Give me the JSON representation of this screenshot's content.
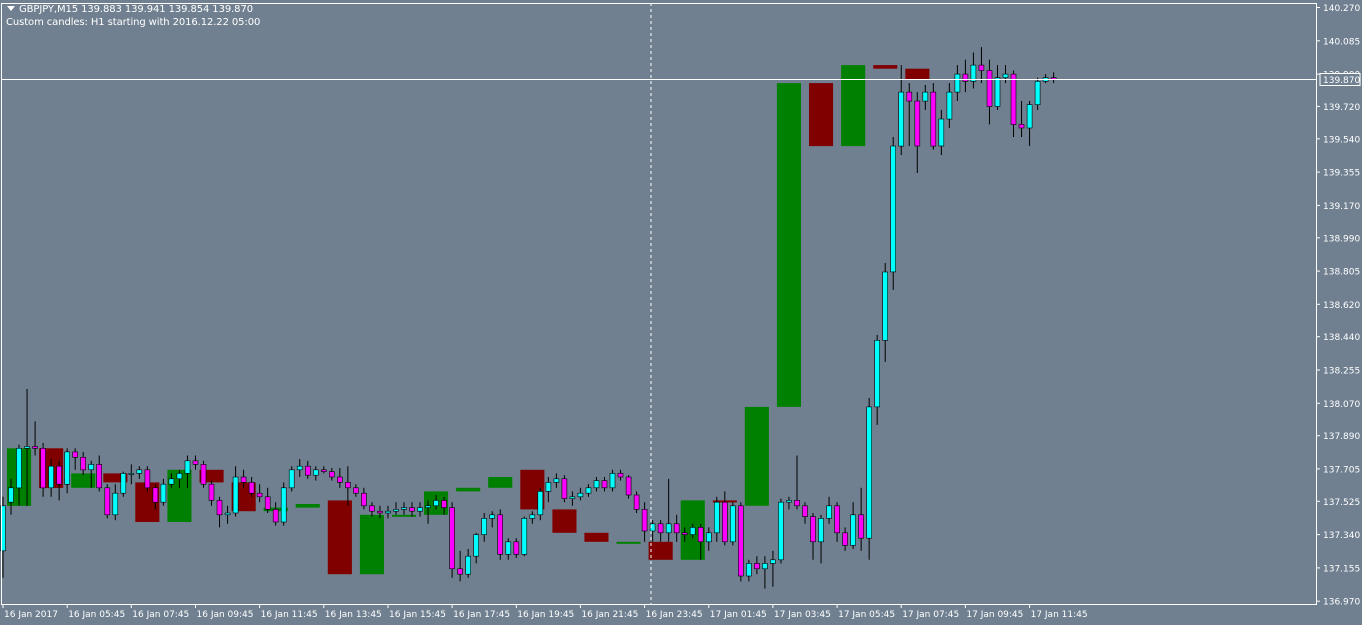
{
  "header": {
    "symbol_line": "GBPJPY,M15  139.883 139.941 139.854 139.870",
    "custom_line": "Custom candles: H1 starting with 2016.12.22 05:00"
  },
  "chart_data": {
    "type": "candlestick",
    "symbol": "GBPJPY",
    "timeframe": "M15",
    "overlay": "H1 custom candles",
    "current_price": 139.87,
    "current_price_label": "139.870",
    "ylim": [
      136.89,
      140.33
    ],
    "y_ticks": [
      140.27,
      140.085,
      139.9,
      139.72,
      139.54,
      139.355,
      139.17,
      138.99,
      138.805,
      138.62,
      138.44,
      138.255,
      138.07,
      137.89,
      137.705,
      137.525,
      137.34,
      137.155,
      136.97
    ],
    "y_tick_labels": [
      "140.270",
      "140.085",
      "139.900",
      "139.720",
      "139.540",
      "139.355",
      "139.170",
      "138.990",
      "138.805",
      "138.620",
      "138.440",
      "138.255",
      "138.070",
      "137.890",
      "137.705",
      "137.525",
      "137.340",
      "137.155",
      "136.970"
    ],
    "x_tick_labels": [
      "16 Jan 2017",
      "16 Jan 05:45",
      "16 Jan 07:45",
      "16 Jan 09:45",
      "16 Jan 11:45",
      "16 Jan 13:45",
      "16 Jan 15:45",
      "16 Jan 17:45",
      "16 Jan 19:45",
      "16 Jan 21:45",
      "16 Jan 23:45",
      "17 Jan 01:45",
      "17 Jan 03:45",
      "17 Jan 05:45",
      "17 Jan 07:45",
      "17 Jan 09:45",
      "17 Jan 11:45"
    ],
    "crosshair_x_label": "16 Jan 23:45",
    "m15_candles": [
      [
        137.25,
        137.5,
        137.1,
        137.55
      ],
      [
        137.52,
        137.6,
        137.45,
        137.65
      ],
      [
        137.6,
        137.82,
        137.5,
        137.84
      ],
      [
        137.82,
        137.83,
        137.5,
        138.15
      ],
      [
        137.83,
        137.82,
        137.78,
        137.97
      ],
      [
        137.82,
        137.6,
        137.55,
        137.85
      ],
      [
        137.6,
        137.72,
        137.55,
        137.76
      ],
      [
        137.72,
        137.62,
        137.53,
        137.75
      ],
      [
        137.62,
        137.8,
        137.57,
        137.82
      ],
      [
        137.8,
        137.77,
        137.7,
        137.82
      ],
      [
        137.77,
        137.7,
        137.67,
        137.8
      ],
      [
        137.7,
        137.73,
        137.6,
        137.75
      ],
      [
        137.73,
        137.6,
        137.58,
        137.78
      ],
      [
        137.6,
        137.45,
        137.43,
        137.62
      ],
      [
        137.45,
        137.57,
        137.42,
        137.62
      ],
      [
        137.57,
        137.68,
        137.55,
        137.69
      ],
      [
        137.68,
        137.68,
        137.62,
        137.73
      ],
      [
        137.68,
        137.7,
        137.65,
        137.72
      ],
      [
        137.7,
        137.6,
        137.58,
        137.72
      ],
      [
        137.6,
        137.52,
        137.48,
        137.62
      ],
      [
        137.52,
        137.62,
        137.5,
        137.65
      ],
      [
        137.62,
        137.65,
        137.6,
        137.68
      ],
      [
        137.65,
        137.68,
        137.6,
        137.7
      ],
      [
        137.68,
        137.75,
        137.6,
        137.78
      ],
      [
        137.75,
        137.73,
        137.7,
        137.78
      ],
      [
        137.73,
        137.62,
        137.6,
        137.75
      ],
      [
        137.62,
        137.53,
        137.5,
        137.64
      ],
      [
        137.53,
        137.45,
        137.38,
        137.55
      ],
      [
        137.45,
        137.46,
        137.4,
        137.5
      ],
      [
        137.46,
        137.66,
        137.44,
        137.72
      ],
      [
        137.66,
        137.63,
        137.6,
        137.7
      ],
      [
        137.63,
        137.57,
        137.55,
        137.66
      ],
      [
        137.57,
        137.55,
        137.52,
        137.62
      ],
      [
        137.55,
        137.48,
        137.46,
        137.6
      ],
      [
        137.48,
        137.41,
        137.39,
        137.52
      ],
      [
        137.41,
        137.6,
        137.39,
        137.63
      ],
      [
        137.6,
        137.7,
        137.58,
        137.72
      ],
      [
        137.7,
        137.72,
        137.66,
        137.76
      ],
      [
        137.72,
        137.67,
        137.65,
        137.75
      ],
      [
        137.67,
        137.7,
        137.64,
        137.72
      ],
      [
        137.7,
        137.69,
        137.68,
        137.72
      ],
      [
        137.69,
        137.66,
        137.64,
        137.71
      ],
      [
        137.66,
        137.63,
        137.6,
        137.71
      ],
      [
        137.63,
        137.6,
        137.5,
        137.72
      ],
      [
        137.6,
        137.57,
        137.55,
        137.62
      ],
      [
        137.57,
        137.5,
        137.48,
        137.6
      ],
      [
        137.5,
        137.47,
        137.44,
        137.52
      ],
      [
        137.47,
        137.46,
        137.43,
        137.5
      ],
      [
        137.46,
        137.47,
        137.43,
        137.5
      ],
      [
        137.47,
        137.48,
        137.45,
        137.52
      ],
      [
        137.48,
        137.49,
        137.45,
        137.52
      ],
      [
        137.49,
        137.47,
        137.44,
        137.52
      ],
      [
        137.47,
        137.49,
        137.44,
        137.52
      ],
      [
        137.49,
        137.5,
        137.4,
        137.53
      ],
      [
        137.5,
        137.53,
        137.48,
        137.56
      ],
      [
        137.53,
        137.49,
        137.45,
        137.55
      ],
      [
        137.49,
        137.15,
        137.1,
        137.52
      ],
      [
        137.15,
        137.12,
        137.08,
        137.25
      ],
      [
        137.12,
        137.22,
        137.1,
        137.26
      ],
      [
        137.22,
        137.34,
        137.18,
        137.35
      ],
      [
        137.34,
        137.43,
        137.3,
        137.46
      ],
      [
        137.43,
        137.45,
        137.38,
        137.47
      ],
      [
        137.45,
        137.23,
        137.2,
        137.48
      ],
      [
        137.23,
        137.3,
        137.2,
        137.32
      ],
      [
        137.3,
        137.23,
        137.21,
        137.32
      ],
      [
        137.23,
        137.43,
        137.22,
        137.44
      ],
      [
        137.43,
        137.45,
        137.4,
        137.47
      ],
      [
        137.45,
        137.58,
        137.42,
        137.6
      ],
      [
        137.58,
        137.63,
        137.52,
        137.66
      ],
      [
        137.63,
        137.65,
        137.6,
        137.68
      ],
      [
        137.65,
        137.54,
        137.52,
        137.67
      ],
      [
        137.54,
        137.55,
        137.5,
        137.58
      ],
      [
        137.55,
        137.57,
        137.53,
        137.6
      ],
      [
        137.57,
        137.6,
        137.55,
        137.62
      ],
      [
        137.6,
        137.64,
        137.58,
        137.66
      ],
      [
        137.64,
        137.6,
        137.58,
        137.66
      ],
      [
        137.6,
        137.68,
        137.58,
        137.7
      ],
      [
        137.68,
        137.66,
        137.64,
        137.7
      ],
      [
        137.66,
        137.56,
        137.54,
        137.67
      ],
      [
        137.56,
        137.48,
        137.46,
        137.58
      ],
      [
        137.48,
        137.36,
        137.3,
        137.52
      ],
      [
        137.36,
        137.4,
        137.3,
        137.42
      ],
      [
        137.4,
        137.35,
        137.3,
        137.42
      ],
      [
        137.35,
        137.4,
        137.3,
        137.65
      ],
      [
        137.4,
        137.35,
        137.3,
        137.45
      ],
      [
        137.35,
        137.34,
        137.3,
        137.38
      ],
      [
        137.34,
        137.38,
        137.32,
        137.4
      ],
      [
        137.38,
        137.3,
        137.2,
        137.4
      ],
      [
        137.3,
        137.35,
        137.25,
        137.38
      ],
      [
        137.35,
        137.52,
        137.3,
        137.55
      ],
      [
        137.52,
        137.3,
        137.28,
        137.58
      ],
      [
        137.3,
        137.5,
        137.28,
        137.52
      ],
      [
        137.5,
        137.11,
        137.08,
        137.52
      ],
      [
        137.11,
        137.18,
        137.08,
        137.2
      ],
      [
        137.18,
        137.15,
        137.12,
        137.22
      ],
      [
        137.15,
        137.18,
        137.04,
        137.22
      ],
      [
        137.18,
        137.2,
        137.05,
        137.25
      ],
      [
        137.2,
        137.52,
        137.18,
        137.54
      ],
      [
        137.52,
        137.53,
        137.48,
        137.55
      ],
      [
        137.53,
        137.5,
        137.48,
        137.78
      ],
      [
        137.5,
        137.44,
        137.4,
        137.52
      ],
      [
        137.44,
        137.3,
        137.2,
        137.46
      ],
      [
        137.3,
        137.43,
        137.18,
        137.45
      ],
      [
        137.43,
        137.5,
        137.4,
        137.55
      ],
      [
        137.5,
        137.35,
        137.3,
        137.52
      ],
      [
        137.35,
        137.28,
        137.25,
        137.38
      ],
      [
        137.28,
        137.45,
        137.26,
        137.52
      ],
      [
        137.45,
        137.32,
        137.25,
        137.6
      ],
      [
        137.32,
        138.05,
        137.2,
        138.1
      ],
      [
        138.05,
        138.42,
        137.95,
        138.45
      ],
      [
        138.42,
        138.8,
        138.3,
        138.85
      ],
      [
        138.8,
        139.5,
        138.7,
        139.55
      ],
      [
        139.5,
        139.8,
        139.45,
        139.95
      ],
      [
        139.8,
        139.75,
        139.5,
        139.85
      ],
      [
        139.75,
        139.5,
        139.35,
        139.8
      ],
      [
        139.75,
        139.8,
        139.7,
        139.84
      ],
      [
        139.8,
        139.5,
        139.48,
        139.85
      ],
      [
        139.5,
        139.65,
        139.45,
        139.7
      ],
      [
        139.65,
        139.8,
        139.6,
        139.85
      ],
      [
        139.8,
        139.9,
        139.75,
        139.95
      ],
      [
        139.9,
        139.86,
        139.8,
        139.98
      ],
      [
        139.86,
        139.95,
        139.82,
        140.02
      ],
      [
        139.95,
        139.92,
        139.85,
        140.05
      ],
      [
        139.92,
        139.72,
        139.62,
        139.98
      ],
      [
        139.72,
        139.88,
        139.7,
        139.95
      ],
      [
        139.88,
        139.9,
        139.85,
        139.95
      ],
      [
        139.9,
        139.62,
        139.55,
        139.92
      ],
      [
        139.62,
        139.6,
        139.55,
        139.75
      ],
      [
        139.6,
        139.73,
        139.5,
        139.75
      ],
      [
        139.73,
        139.86,
        139.7,
        139.88
      ],
      [
        139.86,
        139.88,
        139.85,
        139.9
      ],
      [
        139.88,
        139.87,
        139.85,
        139.91
      ]
    ],
    "h1_candles": [
      {
        "open": 137.5,
        "close": 137.82,
        "high": 137.84,
        "low": 137.5
      },
      {
        "open": 137.82,
        "close": 137.6,
        "high": 137.85,
        "low": 137.53
      },
      {
        "open": 137.6,
        "close": 137.68,
        "high": 137.73,
        "low": 137.42
      },
      {
        "open": 137.68,
        "close": 137.63,
        "high": 137.73,
        "low": 137.55
      },
      {
        "open": 137.63,
        "close": 137.41,
        "high": 137.72,
        "low": 137.39
      },
      {
        "open": 137.41,
        "close": 137.7,
        "high": 137.76,
        "low": 137.39
      },
      {
        "open": 137.7,
        "close": 137.63,
        "high": 137.72,
        "low": 137.6
      },
      {
        "open": 137.63,
        "close": 137.47,
        "high": 137.72,
        "low": 137.43
      },
      {
        "open": 137.47,
        "close": 137.49,
        "high": 137.52,
        "low": 137.4
      },
      {
        "open": 137.49,
        "close": 137.51,
        "high": 137.56,
        "low": 137.4
      },
      {
        "open": 137.53,
        "close": 137.12,
        "high": 137.55,
        "low": 137.08
      },
      {
        "open": 137.12,
        "close": 137.45,
        "high": 137.47,
        "low": 137.08
      },
      {
        "open": 137.45,
        "close": 137.45,
        "high": 137.48,
        "low": 137.2
      },
      {
        "open": 137.45,
        "close": 137.58,
        "high": 137.66,
        "low": 137.42
      },
      {
        "open": 137.58,
        "close": 137.6,
        "high": 137.68,
        "low": 137.5
      },
      {
        "open": 137.6,
        "close": 137.66,
        "high": 137.7,
        "low": 137.55
      },
      {
        "open": 137.7,
        "close": 137.48,
        "high": 137.72,
        "low": 137.45
      },
      {
        "open": 137.48,
        "close": 137.35,
        "high": 137.52,
        "low": 137.3
      },
      {
        "open": 137.35,
        "close": 137.3,
        "high": 137.65,
        "low": 137.2
      },
      {
        "open": 137.3,
        "close": 137.3,
        "high": 137.52,
        "low": 137.2
      },
      {
        "open": 137.3,
        "close": 137.2,
        "high": 137.52,
        "low": 137.04
      },
      {
        "open": 137.2,
        "close": 137.53,
        "high": 137.78,
        "low": 137.05
      },
      {
        "open": 137.53,
        "close": 137.52,
        "high": 137.55,
        "low": 137.2
      },
      {
        "open": 137.5,
        "close": 138.05,
        "high": 138.1,
        "low": 137.25
      },
      {
        "open": 138.05,
        "close": 139.85,
        "high": 139.95,
        "low": 137.95
      },
      {
        "open": 139.85,
        "close": 139.5,
        "high": 139.85,
        "low": 139.35
      },
      {
        "open": 139.5,
        "close": 139.95,
        "high": 140.05,
        "low": 139.45
      },
      {
        "open": 139.95,
        "close": 139.93,
        "high": 140.05,
        "low": 139.55
      },
      {
        "open": 139.93,
        "close": 139.87,
        "high": 139.91,
        "low": 139.5
      }
    ],
    "colors": {
      "background": "#708090",
      "bull_candle": "#00ffff",
      "bear_candle": "#ff00ff",
      "candle_outline": "#000000",
      "h1_bull": "#008000",
      "h1_bear": "#800000",
      "grid_axis": "#ffffff",
      "price_line": "#ffffff"
    }
  }
}
